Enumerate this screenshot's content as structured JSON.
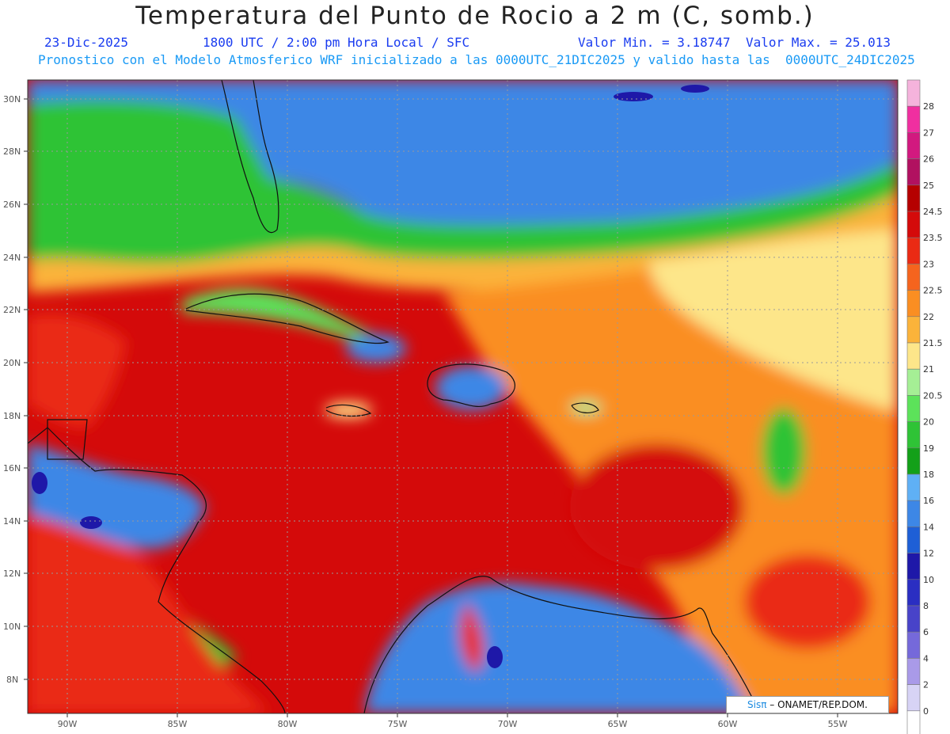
{
  "header": {
    "title": "Temperatura del Punto de Rocio a 2 m (C, somb.)",
    "date": "23-Dic-2025",
    "time": "1800 UTC / 2:00 pm Hora Local / SFC",
    "min": "Valor Min. = 3.18747",
    "max": "Valor Max. = 25.013",
    "model_note": "Pronostico con el Modelo Atmosferico WRF inicializado a las 0000UTC_21DIC2025 y valido hasta las  0000UTC_24DIC2025"
  },
  "axes": {
    "lat_labels": [
      "30N",
      "28N",
      "26N",
      "24N",
      "22N",
      "20N",
      "18N",
      "16N",
      "14N",
      "12N",
      "10N",
      "8N"
    ],
    "lon_labels": [
      "90W",
      "85W",
      "80W",
      "75W",
      "70W",
      "65W",
      "60W",
      "55W"
    ]
  },
  "legend": {
    "labels": [
      "28",
      "27",
      "26",
      "25",
      "24.5",
      "23.5",
      "23",
      "22.5",
      "22",
      "21.5",
      "21",
      "20.5",
      "20",
      "19",
      "18",
      "16",
      "14",
      "12",
      "10",
      "8",
      "6",
      "4",
      "2",
      "0"
    ],
    "colors": [
      "#f5b3dc",
      "#f02fa0",
      "#d2197f",
      "#b11160",
      "#b50000",
      "#d40a0a",
      "#ea2a14",
      "#f5641e",
      "#fa8e22",
      "#fbb33a",
      "#fde68a",
      "#a5ef95",
      "#5ce25a",
      "#2fc336",
      "#13a019",
      "#5fb0f5",
      "#3d87e6",
      "#1e5fd6",
      "#1e18a8",
      "#2a2ec2",
      "#4843c9",
      "#7569da",
      "#a99ae8",
      "#d7d3f5",
      "#ffffff"
    ]
  },
  "credit": {
    "logo_text": "Sisπ",
    "org": "– ONAMET/REP.DOM."
  }
}
